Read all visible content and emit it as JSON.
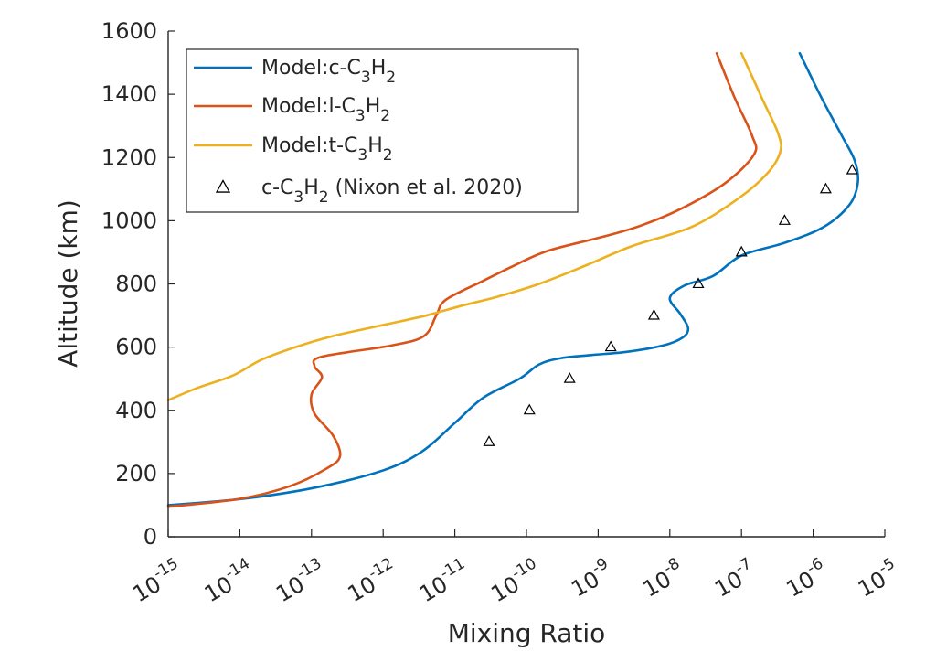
{
  "chart_data": {
    "type": "line",
    "xlabel": "Mixing Ratio",
    "ylabel": "Altitude (km)",
    "xscale": "log",
    "xlim": [
      1e-15,
      1e-05
    ],
    "ylim": [
      0,
      1600
    ],
    "grid": false,
    "legend_position": "top-left",
    "x_ticks": [
      {
        "base": "10",
        "exp": "-15"
      },
      {
        "base": "10",
        "exp": "-14"
      },
      {
        "base": "10",
        "exp": "-13"
      },
      {
        "base": "10",
        "exp": "-12"
      },
      {
        "base": "10",
        "exp": "-11"
      },
      {
        "base": "10",
        "exp": "-10"
      },
      {
        "base": "10",
        "exp": "-9"
      },
      {
        "base": "10",
        "exp": "-8"
      },
      {
        "base": "10",
        "exp": "-7"
      },
      {
        "base": "10",
        "exp": "-6"
      },
      {
        "base": "10",
        "exp": "-5"
      }
    ],
    "y_ticks": [
      "0",
      "200",
      "400",
      "600",
      "800",
      "1000",
      "1200",
      "1400",
      "1600"
    ],
    "series": [
      {
        "name": "Model:c-C3H2",
        "legend_parts": {
          "pre": "Model:c-C",
          "sub1": "3",
          "mid": "H",
          "sub2": "2"
        },
        "color": "#0072BD",
        "style": "line",
        "points": [
          [
            1e-15,
            100
          ],
          [
            1.1e-14,
            120
          ],
          [
            1.1e-13,
            155
          ],
          [
            1e-12,
            210
          ],
          [
            3.5e-12,
            270
          ],
          [
            1e-11,
            360
          ],
          [
            2.5e-11,
            440
          ],
          [
            8e-11,
            500
          ],
          [
            1.5e-10,
            545
          ],
          [
            3e-10,
            565
          ],
          [
            8e-10,
            575
          ],
          [
            2.5e-09,
            585
          ],
          [
            8e-09,
            605
          ],
          [
            1.5e-08,
            630
          ],
          [
            1.8e-08,
            660
          ],
          [
            1.4e-08,
            705
          ],
          [
            1e-08,
            755
          ],
          [
            1.6e-08,
            795
          ],
          [
            4e-08,
            825
          ],
          [
            1e-07,
            890
          ],
          [
            4e-07,
            930
          ],
          [
            1.4e-06,
            980
          ],
          [
            3.2e-06,
            1050
          ],
          [
            4.2e-06,
            1120
          ],
          [
            3.8e-06,
            1190
          ],
          [
            2.5e-06,
            1270
          ],
          [
            1.3e-06,
            1390
          ],
          [
            6.5e-07,
            1530
          ]
        ]
      },
      {
        "name": "Model:l-C3H2",
        "legend_parts": {
          "pre": "Model:l-C",
          "sub1": "3",
          "mid": "H",
          "sub2": "2"
        },
        "color": "#D95319",
        "style": "line",
        "points": [
          [
            1e-15,
            95
          ],
          [
            1e-14,
            120
          ],
          [
            5e-14,
            160
          ],
          [
            1.6e-13,
            215
          ],
          [
            2.5e-13,
            255
          ],
          [
            2e-13,
            320
          ],
          [
            1.1e-13,
            390
          ],
          [
            1e-13,
            450
          ],
          [
            1.4e-13,
            505
          ],
          [
            1.1e-13,
            540
          ],
          [
            1.4e-13,
            570
          ],
          [
            1.3e-12,
            605
          ],
          [
            3.7e-12,
            635
          ],
          [
            5.5e-12,
            700
          ],
          [
            7.5e-12,
            750
          ],
          [
            2.5e-11,
            810
          ],
          [
            7e-11,
            860
          ],
          [
            2e-10,
            905
          ],
          [
            1.2e-09,
            950
          ],
          [
            4e-09,
            985
          ],
          [
            1.5e-08,
            1040
          ],
          [
            6e-08,
            1120
          ],
          [
            1.5e-07,
            1210
          ],
          [
            1.4e-07,
            1270
          ],
          [
            8e-08,
            1390
          ],
          [
            4.5e-08,
            1530
          ]
        ]
      },
      {
        "name": "Model:t-C3H2",
        "legend_parts": {
          "pre": "Model:t-C",
          "sub1": "3",
          "mid": "H",
          "sub2": "2"
        },
        "color": "#EDB120",
        "style": "line",
        "points": [
          [
            1e-15,
            432
          ],
          [
            2.5e-15,
            470
          ],
          [
            8e-15,
            510
          ],
          [
            2e-14,
            560
          ],
          [
            6e-14,
            600
          ],
          [
            2e-13,
            635
          ],
          [
            1e-12,
            670
          ],
          [
            4e-12,
            700
          ],
          [
            1.2e-11,
            730
          ],
          [
            4e-11,
            760
          ],
          [
            1.5e-10,
            800
          ],
          [
            7e-10,
            860
          ],
          [
            3e-09,
            920
          ],
          [
            2e-08,
            980
          ],
          [
            9e-08,
            1070
          ],
          [
            2.3e-07,
            1150
          ],
          [
            3.5e-07,
            1220
          ],
          [
            3.2e-07,
            1280
          ],
          [
            2e-07,
            1380
          ],
          [
            1e-07,
            1530
          ]
        ]
      },
      {
        "name": "c-C3H2 (Nixon et al. 2020)",
        "legend_parts": {
          "pre": "c-C",
          "sub1": "3",
          "mid": "H",
          "sub2": "2",
          "post": " (Nixon et al. 2020)"
        },
        "color": "#000000",
        "style": "markers",
        "marker": "triangle",
        "points": [
          [
            3e-11,
            300
          ],
          [
            1.1e-10,
            400
          ],
          [
            4e-10,
            500
          ],
          [
            1.5e-09,
            600
          ],
          [
            6e-09,
            700
          ],
          [
            2.5e-08,
            800
          ],
          [
            1e-07,
            900
          ],
          [
            4e-07,
            1000
          ],
          [
            1.5e-06,
            1100
          ],
          [
            3.5e-06,
            1160
          ]
        ]
      }
    ]
  }
}
